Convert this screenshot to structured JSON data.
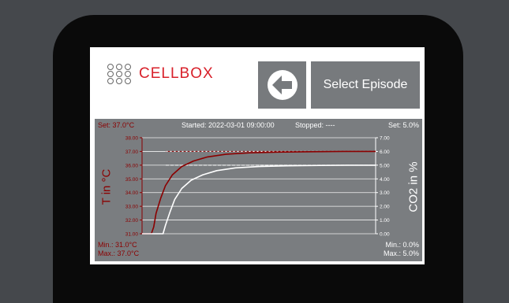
{
  "header": {
    "logo_text": "CELLBOX",
    "select_episode_label": "Select Episode",
    "back_icon": "arrow-left-icon"
  },
  "status": {
    "set_temp": "Set: 37.0°C",
    "set_co2": "Set: 5.0%",
    "started": "Started: 2022-03-01 09:00:00",
    "stopped": "Stopped: ----",
    "min_temp": "Min.: 31.0°C",
    "max_temp": "Max.: 37.0°C",
    "min_co2": "Min.: 0.0%",
    "max_co2": "Max.: 5.0%"
  },
  "colors": {
    "temp_series": "#8b0000",
    "co2_series": "#ffffff",
    "panel_bg": "#7a7d80",
    "button_bg": "#777a7d",
    "brand_red": "#d8202a"
  },
  "chart_data": {
    "type": "line",
    "ylabel_left": "T in °C",
    "ylabel_right": "CO2 in %",
    "ylim_left": [
      31.0,
      38.0
    ],
    "ylim_right": [
      0.0,
      7.0
    ],
    "left_ticks": [
      "31.00",
      "32.00",
      "33.00",
      "34.00",
      "35.00",
      "36.00",
      "37.00",
      "38.00"
    ],
    "right_ticks": [
      "0.00",
      "1.00",
      "2.00",
      "3.00",
      "4.00",
      "5.00",
      "6.00",
      "7.00"
    ],
    "grid": true,
    "setpoints": {
      "temperature": 37.0,
      "co2": 5.0
    },
    "series": [
      {
        "axis": "left",
        "x": [
          0,
          0.04,
          0.05,
          0.06,
          0.08,
          0.1,
          0.13,
          0.17,
          0.22,
          0.28,
          0.36,
          0.46,
          0.58,
          0.72,
          0.86,
          1.0
        ],
        "values": [
          31.0,
          31.0,
          31.5,
          32.5,
          33.6,
          34.5,
          35.3,
          35.9,
          36.3,
          36.6,
          36.8,
          36.9,
          36.95,
          36.98,
          37.0,
          37.0
        ]
      },
      {
        "axis": "right",
        "x": [
          0,
          0.09,
          0.1,
          0.12,
          0.14,
          0.17,
          0.21,
          0.26,
          0.32,
          0.4,
          0.5,
          0.62,
          0.76,
          0.88,
          1.0
        ],
        "values": [
          0.0,
          0.0,
          0.6,
          1.6,
          2.5,
          3.3,
          3.9,
          4.3,
          4.6,
          4.8,
          4.9,
          4.95,
          4.98,
          5.0,
          5.0
        ]
      }
    ]
  }
}
